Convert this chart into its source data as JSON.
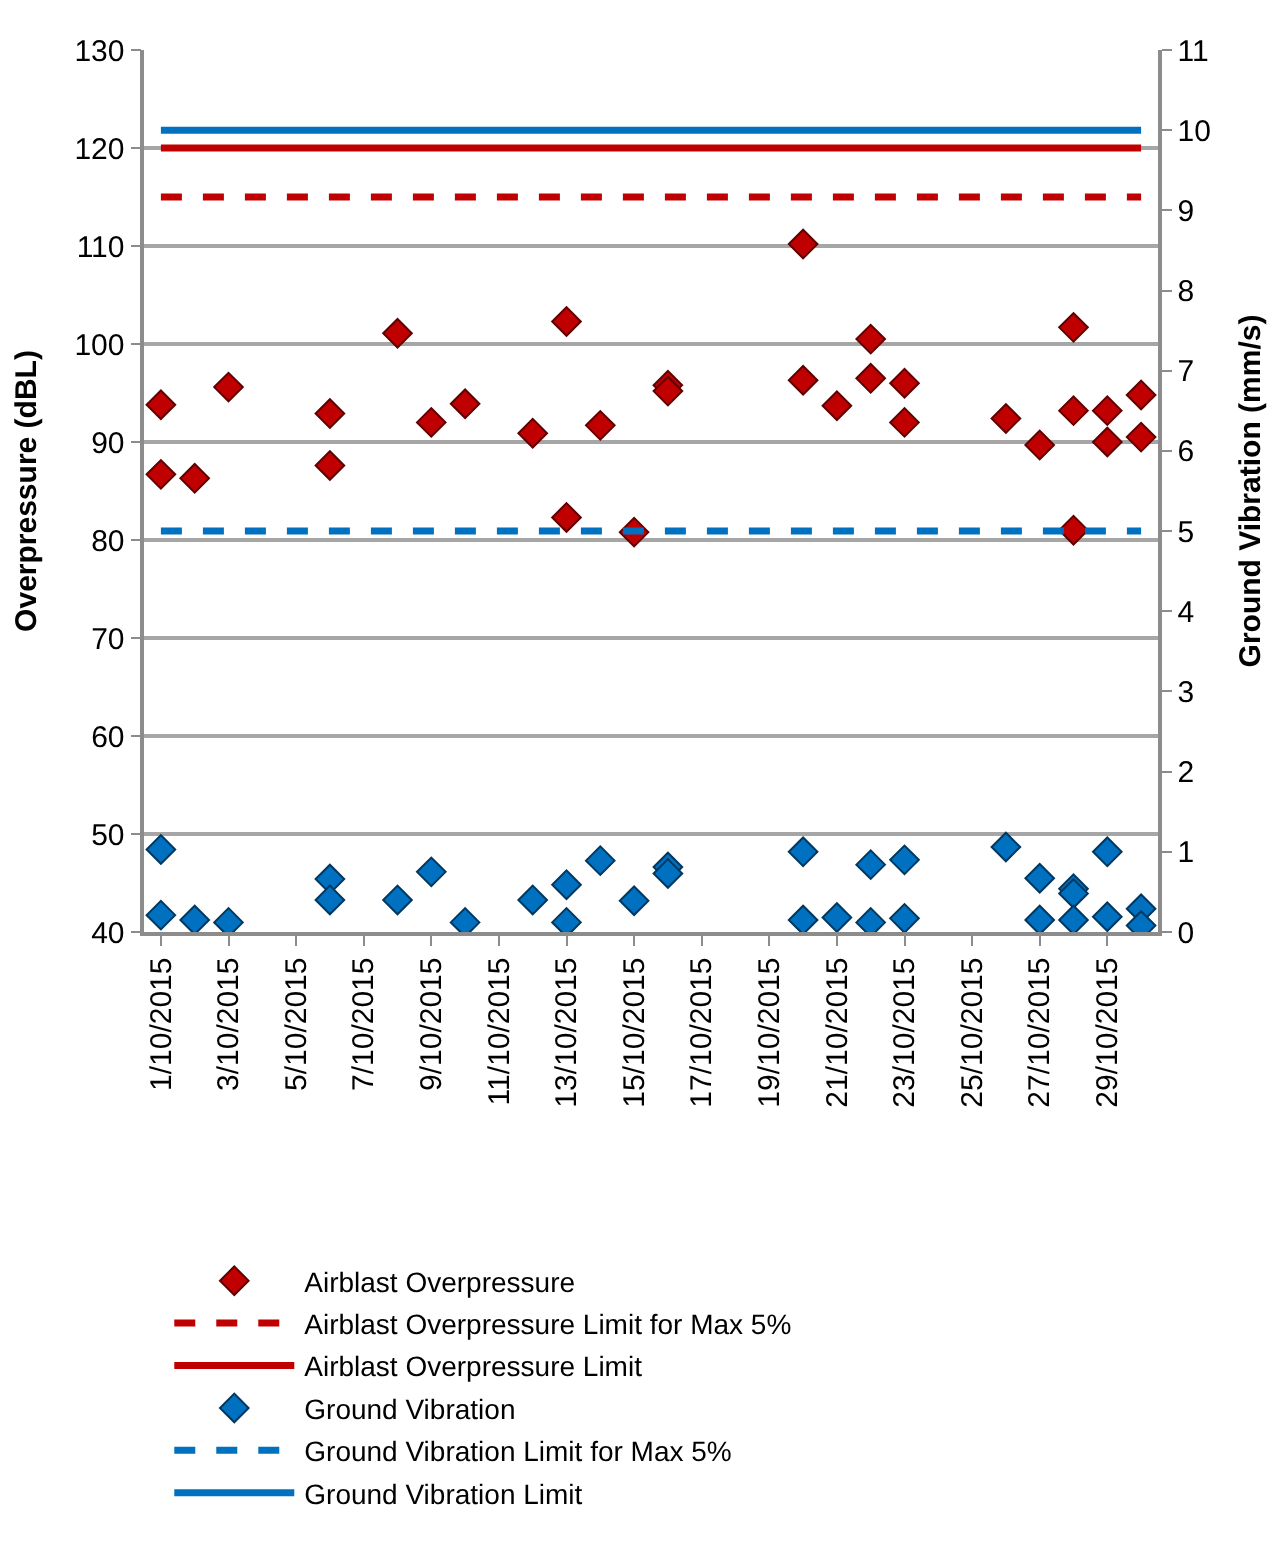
{
  "chart_data": {
    "type": "scatter",
    "ylabel": "Overpressure (dBL)",
    "y2label": "Ground Vibration (mm/s)",
    "xlim": [
      "2015-09-30T12:00",
      "2015-10-30T12:00"
    ],
    "xticks": [
      {
        "value": "2015-10-01",
        "label": "1/10/2015"
      },
      {
        "value": "2015-10-03",
        "label": "3/10/2015"
      },
      {
        "value": "2015-10-05",
        "label": "5/10/2015"
      },
      {
        "value": "2015-10-07",
        "label": "7/10/2015"
      },
      {
        "value": "2015-10-09",
        "label": "9/10/2015"
      },
      {
        "value": "2015-10-11",
        "label": "11/10/2015"
      },
      {
        "value": "2015-10-13",
        "label": "13/10/2015"
      },
      {
        "value": "2015-10-15",
        "label": "15/10/2015"
      },
      {
        "value": "2015-10-17",
        "label": "17/10/2015"
      },
      {
        "value": "2015-10-19",
        "label": "19/10/2015"
      },
      {
        "value": "2015-10-21",
        "label": "21/10/2015"
      },
      {
        "value": "2015-10-23",
        "label": "23/10/2015"
      },
      {
        "value": "2015-10-25",
        "label": "25/10/2015"
      },
      {
        "value": "2015-10-27",
        "label": "27/10/2015"
      },
      {
        "value": "2015-10-29",
        "label": "29/10/2015"
      }
    ],
    "ylim": [
      40,
      130
    ],
    "yticks": [
      40,
      50,
      60,
      70,
      80,
      90,
      100,
      110,
      120,
      130
    ],
    "y2lim": [
      0,
      11
    ],
    "y2ticks": [
      0,
      1,
      2,
      3,
      4,
      5,
      6,
      7,
      8,
      9,
      10,
      11
    ],
    "grid": "y",
    "legend": "bottom",
    "series": [
      {
        "name": "Airblast Overpressure",
        "marker": "diamond",
        "color": "#c00000",
        "x": [
          "2015-10-01",
          "2015-10-01",
          "2015-10-02",
          "2015-10-03",
          "2015-10-06",
          "2015-10-06",
          "2015-10-08",
          "2015-10-09",
          "2015-10-10",
          "2015-10-12",
          "2015-10-13",
          "2015-10-13",
          "2015-10-14",
          "2015-10-15",
          "2015-10-16",
          "2015-10-16",
          "2015-10-20",
          "2015-10-20",
          "2015-10-21",
          "2015-10-22",
          "2015-10-22",
          "2015-10-23",
          "2015-10-23",
          "2015-10-26",
          "2015-10-27",
          "2015-10-28",
          "2015-10-28",
          "2015-10-28",
          "2015-10-29",
          "2015-10-29",
          "2015-10-30",
          "2015-10-30"
        ],
        "values": [
          93.8,
          86.7,
          86.3,
          95.6,
          92.9,
          87.6,
          101.1,
          92.0,
          93.9,
          90.9,
          102.3,
          82.3,
          91.7,
          80.8,
          95.8,
          95.2,
          110.2,
          96.3,
          93.7,
          100.5,
          96.5,
          96.0,
          92.0,
          92.4,
          89.7,
          101.7,
          93.2,
          81.0,
          93.2,
          90.0,
          94.8,
          90.5
        ]
      },
      {
        "name": "Airblast Overpressure Limit for Max 5%",
        "type": "line",
        "marker": "none",
        "line_style": "dashed",
        "color": "#c00000",
        "x": [
          "2015-10-01",
          "2015-10-30"
        ],
        "values": [
          115,
          115
        ]
      },
      {
        "name": "Airblast Overpressure Limit",
        "type": "line",
        "marker": "none",
        "line_style": "solid",
        "color": "#c00000",
        "x": [
          "2015-10-01",
          "2015-10-30"
        ],
        "values": [
          120,
          120
        ]
      },
      {
        "name": "Ground Vibration",
        "marker": "diamond",
        "color": "#0070c0",
        "axis": "y2",
        "x": [
          "2015-10-01",
          "2015-10-01",
          "2015-10-02",
          "2015-10-03",
          "2015-10-06",
          "2015-10-06",
          "2015-10-08",
          "2015-10-09",
          "2015-10-10",
          "2015-10-12",
          "2015-10-13",
          "2015-10-13",
          "2015-10-14",
          "2015-10-15",
          "2015-10-16",
          "2015-10-16",
          "2015-10-20",
          "2015-10-20",
          "2015-10-21",
          "2015-10-22",
          "2015-10-22",
          "2015-10-23",
          "2015-10-23",
          "2015-10-26",
          "2015-10-27",
          "2015-10-27",
          "2015-10-28",
          "2015-10-28",
          "2015-10-28",
          "2015-10-29",
          "2015-10-29",
          "2015-10-30",
          "2015-10-30"
        ],
        "values": [
          1.03,
          0.21,
          0.15,
          0.12,
          0.66,
          0.4,
          0.4,
          0.75,
          0.12,
          0.4,
          0.59,
          0.12,
          0.89,
          0.39,
          0.81,
          0.73,
          1.0,
          0.15,
          0.18,
          0.84,
          0.12,
          0.9,
          0.17,
          1.06,
          0.67,
          0.15,
          0.54,
          0.48,
          0.15,
          1.0,
          0.19,
          0.29,
          0.08
        ]
      },
      {
        "name": "Ground Vibration Limit for Max 5%",
        "type": "line",
        "marker": "none",
        "line_style": "dashed",
        "color": "#0070c0",
        "axis": "y2",
        "x": [
          "2015-10-01",
          "2015-10-30"
        ],
        "values": [
          5,
          5
        ]
      },
      {
        "name": "Ground Vibration Limit",
        "type": "line",
        "marker": "none",
        "line_style": "solid",
        "color": "#0070c0",
        "axis": "y2",
        "x": [
          "2015-10-01",
          "2015-10-30"
        ],
        "values": [
          10,
          10
        ]
      }
    ]
  }
}
